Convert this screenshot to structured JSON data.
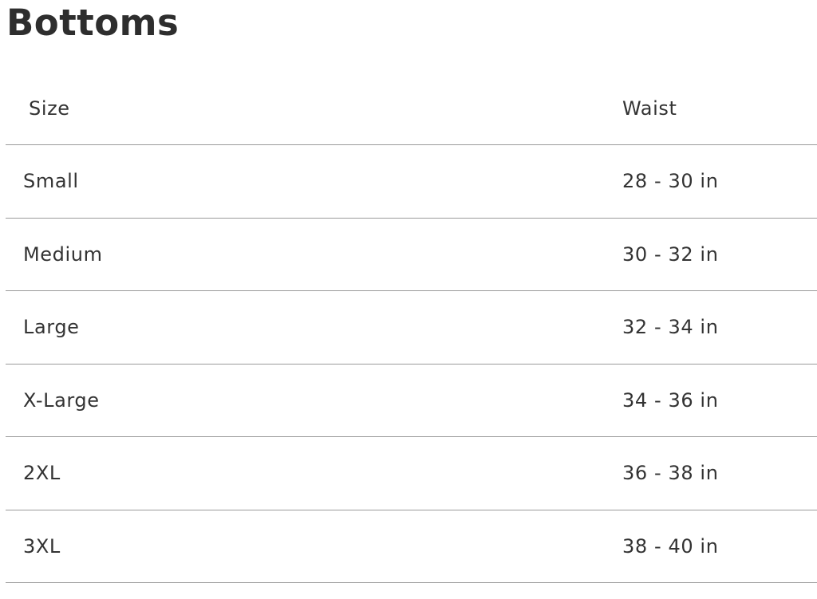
{
  "title": "Bottoms",
  "table": {
    "headers": [
      "Size",
      "Waist"
    ],
    "rows": [
      [
        "Small",
        "28 - 30 in"
      ],
      [
        "Medium",
        "30 - 32 in"
      ],
      [
        "Large",
        "32 - 34 in"
      ],
      [
        "X-Large",
        "34 - 36 in"
      ],
      [
        "2XL",
        "36 - 38 in"
      ],
      [
        "3XL",
        "38 - 40 in"
      ]
    ]
  }
}
